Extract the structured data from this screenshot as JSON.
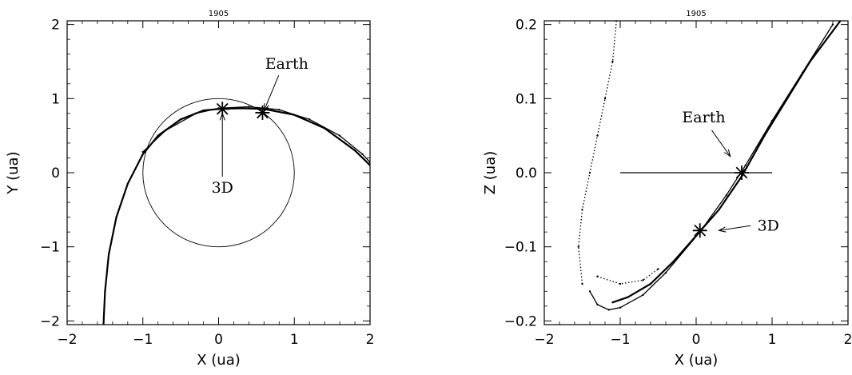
{
  "chart_data": [
    {
      "type": "scatter",
      "title": "1905",
      "xlabel": "X (ua)",
      "ylabel": "Y (ua)",
      "xlim": [
        -2,
        2
      ],
      "ylim": [
        -2.05,
        2.05
      ],
      "xticks": [
        "−2",
        "−1",
        "0",
        "1",
        "2"
      ],
      "yticks": [
        "−2",
        "−1",
        "0",
        "1",
        "2"
      ],
      "grid": false,
      "series": [
        {
          "values": [
            [
              -1.52,
              -2.05
            ],
            [
              -1.5,
              -1.6
            ],
            [
              -1.45,
              -1.1
            ],
            [
              -1.35,
              -0.6
            ],
            [
              -1.2,
              -0.15
            ],
            [
              -1.0,
              0.25
            ],
            [
              -0.8,
              0.5
            ],
            [
              -0.5,
              0.72
            ],
            [
              -0.2,
              0.84
            ],
            [
              0.0,
              0.86
            ],
            [
              0.3,
              0.87
            ],
            [
              0.6,
              0.86
            ],
            [
              1.0,
              0.78
            ],
            [
              1.4,
              0.6
            ],
            [
              1.8,
              0.3
            ],
            [
              2.0,
              0.1
            ]
          ]
        },
        {
          "values": [
            [
              -1.0,
              0.28
            ],
            [
              -0.7,
              0.57
            ],
            [
              -0.3,
              0.8
            ],
            [
              0.0,
              0.87
            ],
            [
              0.4,
              0.89
            ],
            [
              0.8,
              0.85
            ],
            [
              1.2,
              0.72
            ],
            [
              1.6,
              0.5
            ],
            [
              1.9,
              0.25
            ],
            [
              2.0,
              0.14
            ]
          ]
        }
      ],
      "circle": {
        "center": [
          0,
          0
        ],
        "radius": 1
      },
      "markers": [
        {
          "x": 0.05,
          "y": 0.86
        },
        {
          "x": 0.58,
          "y": 0.81
        }
      ],
      "annotations": [
        {
          "text": "Earth",
          "x": 0.9,
          "y": 1.4,
          "arrow_to": [
            0.6,
            0.84
          ]
        },
        {
          "text": "3D",
          "x": 0.05,
          "y": -0.27,
          "arrow_to": [
            0.05,
            0.8
          ]
        }
      ]
    },
    {
      "type": "scatter",
      "title": "1905",
      "xlabel": "X (ua)",
      "ylabel": "Z (ua)",
      "xlim": [
        -2,
        2
      ],
      "ylim": [
        -0.205,
        0.205
      ],
      "xticks": [
        "−2",
        "−1",
        "0",
        "1",
        "2"
      ],
      "yticks": [
        "−0.2",
        "−0.1",
        "0.0",
        "0.1",
        "0.2"
      ],
      "grid": false,
      "series": [
        {
          "values": [
            [
              -1.1,
              -0.175
            ],
            [
              -0.9,
              -0.168
            ],
            [
              -0.6,
              -0.15
            ],
            [
              -0.3,
              -0.12
            ],
            [
              0.0,
              -0.085
            ],
            [
              0.3,
              -0.05
            ],
            [
              0.6,
              -0.005
            ],
            [
              0.9,
              0.05
            ],
            [
              1.2,
              0.1
            ],
            [
              1.5,
              0.15
            ],
            [
              1.9,
              0.205
            ]
          ]
        },
        {
          "values": [
            [
              -1.4,
              -0.16
            ],
            [
              -1.3,
              -0.178
            ],
            [
              -1.15,
              -0.185
            ],
            [
              -1.0,
              -0.182
            ],
            [
              -0.7,
              -0.165
            ],
            [
              -0.4,
              -0.135
            ],
            [
              0.05,
              -0.08
            ],
            [
              0.4,
              -0.03
            ],
            [
              0.65,
              0.01
            ],
            [
              1.0,
              0.07
            ],
            [
              1.4,
              0.135
            ],
            [
              1.8,
              0.2
            ]
          ]
        },
        {
          "values": [
            [
              -1.5,
              -0.15
            ],
            [
              -1.55,
              -0.1
            ],
            [
              -1.5,
              -0.05
            ],
            [
              -1.4,
              0.0
            ],
            [
              -1.3,
              0.05
            ],
            [
              -1.2,
              0.1
            ],
            [
              -1.1,
              0.15
            ],
            [
              -1.05,
              0.205
            ]
          ]
        },
        {
          "values": [
            [
              -1.3,
              -0.14
            ],
            [
              -1.0,
              -0.15
            ],
            [
              -0.7,
              -0.145
            ],
            [
              -0.5,
              -0.13
            ]
          ]
        }
      ],
      "hline": {
        "y": 0.0,
        "x_from": -1,
        "x_to": 1
      },
      "markers": [
        {
          "x": 0.6,
          "y": 0.0
        },
        {
          "x": 0.05,
          "y": -0.078
        }
      ],
      "annotations": [
        {
          "text": "Earth",
          "x": 0.1,
          "y": 0.068,
          "arrow_to": [
            0.45,
            0.022
          ]
        },
        {
          "text": "3D",
          "x": 0.95,
          "y": -0.078,
          "arrow_to": [
            0.3,
            -0.078
          ]
        }
      ]
    }
  ]
}
